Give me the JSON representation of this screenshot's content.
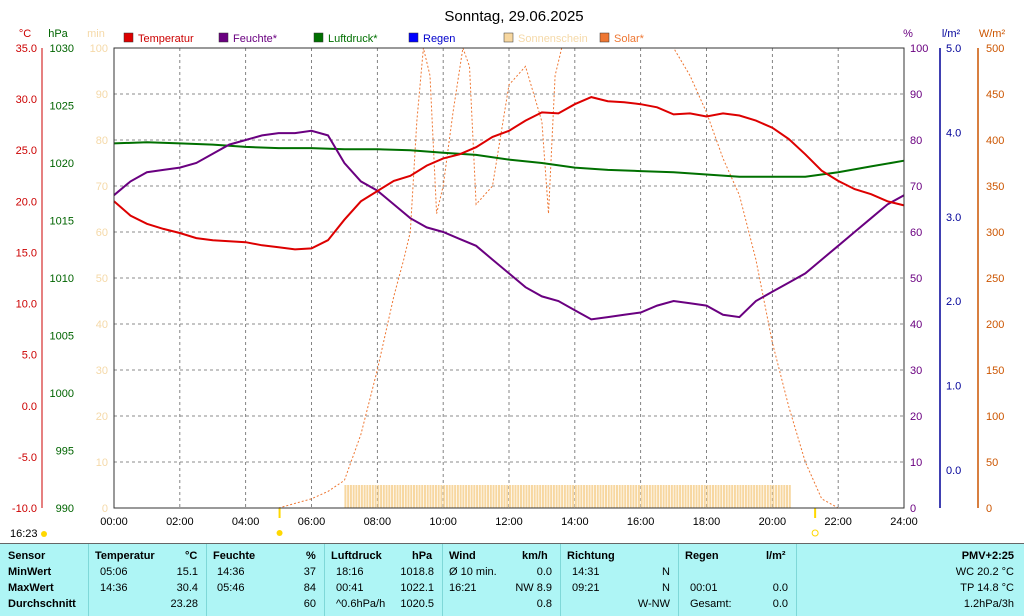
{
  "title": "Sonntag, 29.06.2025",
  "axes": {
    "temp": {
      "unit": "°C",
      "ticks": [
        "35.0",
        "30.0",
        "25.0",
        "20.0",
        "15.0",
        "10.0",
        "5.0",
        "0.0",
        "-5.0",
        "-10.0"
      ],
      "color": "#cc0000"
    },
    "pressure": {
      "unit": "hPa",
      "ticks": [
        "1030",
        "1025",
        "1020",
        "1015",
        "1010",
        "1005",
        "1000",
        "995",
        "990"
      ],
      "color": "#006400"
    },
    "sun": {
      "unit": "min",
      "ticks": [
        "100",
        "90",
        "80",
        "70",
        "60",
        "50",
        "40",
        "30",
        "20",
        "10",
        "0"
      ],
      "color": "#f5d9a8"
    },
    "humidity": {
      "unit": "%",
      "ticks": [
        "100",
        "90",
        "80",
        "70",
        "60",
        "50",
        "40",
        "30",
        "20",
        "10",
        "0"
      ],
      "color": "#6a0080"
    },
    "rain": {
      "unit": "l/m²",
      "ticks": [
        "5.0",
        "4.0",
        "3.0",
        "2.0",
        "1.0",
        "0.0"
      ],
      "color": "#000099"
    },
    "solar": {
      "unit": "W/m²",
      "ticks": [
        "500",
        "450",
        "400",
        "350",
        "300",
        "250",
        "200",
        "150",
        "100",
        "50",
        "0"
      ],
      "color": "#cc5500"
    },
    "time": [
      "00:00",
      "02:00",
      "04:00",
      "06:00",
      "08:00",
      "10:00",
      "12:00",
      "14:00",
      "16:00",
      "18:00",
      "20:00",
      "22:00",
      "24:00"
    ]
  },
  "legend": [
    {
      "label": "Temperatur",
      "color": "#dd0000"
    },
    {
      "label": "Feuchte*",
      "color": "#6a0080"
    },
    {
      "label": "Luftdruck*",
      "color": "#007000"
    },
    {
      "label": "Regen",
      "color": "#0000ff"
    },
    {
      "label": "Sonnenschein",
      "color": "#f7d7a0"
    },
    {
      "label": "Solar*",
      "color": "#ee7733"
    }
  ],
  "sunrise_label": "16:23",
  "chart_data": {
    "type": "line",
    "title": "Sonntag, 29.06.2025",
    "x_unit": "hours",
    "xlim": [
      0,
      24
    ],
    "series": [
      {
        "name": "Temperatur",
        "unit": "°C",
        "color": "#dd0000",
        "x": [
          0,
          0.5,
          1,
          1.5,
          2,
          2.5,
          3,
          3.5,
          4,
          4.5,
          5,
          5.5,
          6,
          6.5,
          7,
          7.5,
          8,
          8.5,
          9,
          9.5,
          10,
          10.5,
          11,
          11.5,
          12,
          12.5,
          13,
          13.5,
          14,
          14.5,
          15,
          15.5,
          16,
          16.5,
          17,
          17.5,
          18,
          18.5,
          19,
          19.5,
          20,
          20.5,
          21,
          21.5,
          22,
          22.5,
          23,
          23.5,
          24
        ],
        "y": [
          20,
          18.6,
          17.8,
          17.3,
          16.9,
          16.4,
          16.2,
          16.1,
          16,
          15.7,
          15.5,
          15.3,
          15.4,
          16.2,
          18.2,
          20,
          21,
          22,
          22.5,
          23.5,
          24.2,
          24.6,
          25.3,
          26.3,
          26.9,
          27.9,
          28.7,
          28.6,
          29.5,
          30.2,
          29.8,
          29.7,
          29.5,
          29.2,
          28.5,
          28.6,
          28.3,
          28.6,
          28.4,
          27.9,
          27.2,
          26.1,
          24.6,
          23,
          22,
          21.2,
          20.7,
          20,
          19.6
        ]
      },
      {
        "name": "Feuchte*",
        "unit": "%",
        "color": "#6a0080",
        "x": [
          0,
          0.5,
          1,
          1.5,
          2,
          2.5,
          3,
          3.5,
          4,
          4.5,
          5,
          5.5,
          6,
          6.5,
          7,
          7.5,
          8,
          8.5,
          9,
          9.5,
          10,
          10.5,
          11,
          11.5,
          12,
          12.5,
          13,
          13.5,
          14,
          14.5,
          15,
          15.5,
          16,
          16.5,
          17,
          17.5,
          18,
          18.5,
          19,
          19.5,
          20,
          20.5,
          21,
          21.5,
          22,
          22.5,
          23,
          23.5,
          24
        ],
        "y": [
          68,
          71,
          73,
          73.5,
          74,
          75,
          77,
          79,
          80,
          81,
          81.5,
          81.5,
          82,
          81,
          75,
          71,
          69,
          66,
          63,
          61,
          60,
          58.5,
          57,
          54,
          51,
          48,
          46,
          45,
          43,
          41,
          41.5,
          42,
          42.5,
          44,
          45,
          44.5,
          44,
          42,
          41.5,
          45,
          47,
          49,
          51,
          54,
          57,
          60,
          63,
          66,
          68
        ]
      },
      {
        "name": "Luftdruck*",
        "unit": "hPa",
        "color": "#007000",
        "x": [
          0,
          1,
          2,
          3,
          4,
          5,
          6,
          7,
          8,
          9,
          10,
          11,
          12,
          13,
          14,
          15,
          16,
          17,
          18,
          19,
          20,
          21,
          22,
          23,
          24
        ],
        "y": [
          1021.7,
          1021.8,
          1021.7,
          1021.6,
          1021.4,
          1021.3,
          1021.3,
          1021.2,
          1021.2,
          1021.1,
          1020.9,
          1020.7,
          1020.3,
          1020.0,
          1019.6,
          1019.4,
          1019.3,
          1019.2,
          1019.0,
          1018.8,
          1018.8,
          1018.8,
          1019.2,
          1019.7,
          1020.2
        ]
      },
      {
        "name": "Solar*",
        "unit": "W/m²",
        "color": "#ee7733",
        "x": [
          5,
          6,
          6.5,
          7,
          7.5,
          8,
          8.5,
          8.8,
          9,
          9.2,
          9.4,
          9.6,
          9.8,
          10,
          10.3,
          10.6,
          10.8,
          11,
          11.5,
          12,
          12.5,
          13,
          13.2,
          13.4,
          13.6,
          14,
          15,
          16,
          17,
          17.5,
          18,
          18.5,
          19,
          19.5,
          20,
          20.5,
          21,
          21.5,
          22
        ],
        "y": [
          0,
          10,
          18,
          30,
          80,
          150,
          230,
          270,
          300,
          420,
          500,
          470,
          320,
          350,
          430,
          500,
          480,
          330,
          350,
          460,
          480,
          420,
          320,
          470,
          500,
          500,
          500,
          500,
          500,
          470,
          430,
          380,
          340,
          270,
          180,
          110,
          50,
          10,
          0
        ]
      },
      {
        "name": "Sonnenschein",
        "unit": "min",
        "color": "#f7d7a0",
        "x_range": [
          7,
          20.5
        ],
        "y": 5
      }
    ]
  },
  "stats": {
    "headers": {
      "sensor": "Sensor",
      "temp": "Temperatur",
      "temp_unit": "°C",
      "hum": "Feuchte",
      "hum_unit": "%",
      "press": "Luftdruck",
      "press_unit": "hPa",
      "wind": "Wind",
      "wind_unit": "km/h",
      "dir": "Richtung",
      "rain": "Regen",
      "rain_unit": "l/m²",
      "pmv": "PMV+2:25"
    },
    "rows": [
      {
        "label": "MinWert",
        "temp_time": "05:06",
        "temp_val": "15.1",
        "hum_time": "14:36",
        "hum_val": "37",
        "press_time": "18:16",
        "press_val": "1018.8",
        "wind_lbl": "Ø 10 min.",
        "wind_val": "0.0",
        "dir_time": "14:31",
        "dir_val": "N",
        "rain_time": "",
        "rain_val": "",
        "pmv": "WC 20.2 °C"
      },
      {
        "label": "MaxWert",
        "temp_time": "14:36",
        "temp_val": "30.4",
        "hum_time": "05:46",
        "hum_val": "84",
        "press_time": "00:41",
        "press_val": "1022.1",
        "wind_lbl": "16:21",
        "wind_val": "NW 8.9",
        "dir_time": "09:21",
        "dir_val": "N",
        "rain_time": "00:01",
        "rain_val": "0.0",
        "pmv": "TP 14.8 °C"
      },
      {
        "label": "Durchschnitt",
        "temp_time": "",
        "temp_val": "23.28",
        "hum_time": "",
        "hum_val": "60",
        "press_time": "^0.6hPa/h",
        "press_val": "1020.5",
        "wind_lbl": "",
        "wind_val": "0.8",
        "dir_time": "",
        "dir_val": "W-NW",
        "rain_time": "Gesamt:",
        "rain_val": "0.0",
        "pmv": "1.2hPa/3h"
      }
    ]
  }
}
